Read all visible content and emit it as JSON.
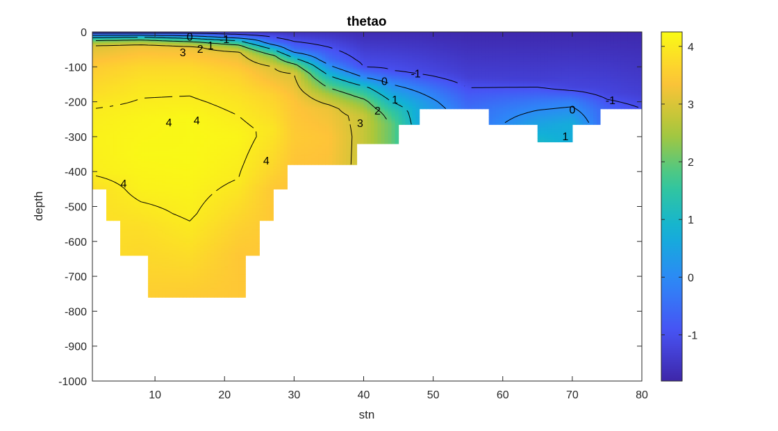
{
  "chart_data": {
    "type": "heatmap",
    "title": "thetao",
    "xlabel": "stn",
    "ylabel": "depth",
    "xlim": [
      1,
      80
    ],
    "ylim": [
      -1000,
      0
    ],
    "x_ticks": [
      10,
      20,
      30,
      40,
      50,
      60,
      70,
      80
    ],
    "y_ticks": [
      0,
      -100,
      -200,
      -300,
      -400,
      -500,
      -600,
      -700,
      -800,
      -900,
      -1000
    ],
    "colorbar": {
      "range": [
        -1.8,
        4.25
      ],
      "ticks": [
        4,
        3,
        2,
        1,
        0,
        -1
      ],
      "colormap": "parula"
    },
    "bottom_depth_steps": [
      [
        1,
        -450
      ],
      [
        3,
        -540
      ],
      [
        5,
        -640
      ],
      [
        9,
        -760
      ],
      [
        23,
        -640
      ],
      [
        25,
        -540
      ],
      [
        27,
        -450
      ],
      [
        29,
        -380
      ],
      [
        39,
        -320
      ],
      [
        45,
        -265
      ],
      [
        48,
        -220
      ],
      [
        58,
        -265
      ],
      [
        65,
        -315
      ],
      [
        70,
        -265
      ],
      [
        74,
        -220
      ],
      [
        80,
        -220
      ]
    ],
    "value_profiles": [
      {
        "x": 1,
        "t": [
          [
            0,
            -1.5
          ],
          [
            -8,
            -0.3
          ],
          [
            -15,
            0.8
          ],
          [
            -25,
            2.0
          ],
          [
            -40,
            3.0
          ],
          [
            -100,
            3.5
          ],
          [
            -180,
            3.8
          ],
          [
            -220,
            4.0
          ],
          [
            -300,
            4.1
          ],
          [
            -400,
            4.05
          ],
          [
            -450,
            3.8
          ]
        ]
      },
      {
        "x": 8,
        "t": [
          [
            0,
            -1.5
          ],
          [
            -8,
            -0.3
          ],
          [
            -15,
            1.0
          ],
          [
            -25,
            2.2
          ],
          [
            -40,
            3.2
          ],
          [
            -100,
            3.7
          ],
          [
            -150,
            3.9
          ],
          [
            -250,
            4.15
          ],
          [
            -350,
            4.2
          ],
          [
            -450,
            4.1
          ],
          [
            -560,
            3.8
          ],
          [
            -760,
            3.55
          ]
        ]
      },
      {
        "x": 15,
        "t": [
          [
            0,
            -1.5
          ],
          [
            -10,
            -0.2
          ],
          [
            -18,
            1.0
          ],
          [
            -30,
            2.2
          ],
          [
            -45,
            3.2
          ],
          [
            -100,
            3.7
          ],
          [
            -150,
            3.9
          ],
          [
            -250,
            4.2
          ],
          [
            -380,
            4.2
          ],
          [
            -520,
            4.05
          ],
          [
            -760,
            3.5
          ]
        ]
      },
      {
        "x": 22,
        "t": [
          [
            0,
            -1.5
          ],
          [
            -14,
            -0.5
          ],
          [
            -25,
            1.0
          ],
          [
            -40,
            2.2
          ],
          [
            -60,
            3.1
          ],
          [
            -120,
            3.6
          ],
          [
            -200,
            3.9
          ],
          [
            -300,
            4.15
          ],
          [
            -420,
            4.0
          ],
          [
            -560,
            3.6
          ],
          [
            -640,
            3.45
          ]
        ]
      },
      {
        "x": 27,
        "t": [
          [
            0,
            -1.5
          ],
          [
            -30,
            -0.5
          ],
          [
            -50,
            1.0
          ],
          [
            -70,
            2.2
          ],
          [
            -100,
            3.0
          ],
          [
            -180,
            3.6
          ],
          [
            -280,
            3.9
          ],
          [
            -380,
            3.7
          ],
          [
            -450,
            3.45
          ]
        ]
      },
      {
        "x": 30,
        "t": [
          [
            0,
            -1.6
          ],
          [
            -50,
            -0.5
          ],
          [
            -75,
            1.0
          ],
          [
            -95,
            2.2
          ],
          [
            -120,
            3.0
          ],
          [
            -200,
            3.4
          ],
          [
            -300,
            3.5
          ],
          [
            -380,
            3.4
          ]
        ]
      },
      {
        "x": 35,
        "t": [
          [
            0,
            -1.6
          ],
          [
            -80,
            -0.5
          ],
          [
            -110,
            0.5
          ],
          [
            -140,
            1.5
          ],
          [
            -180,
            2.5
          ],
          [
            -220,
            3.2
          ],
          [
            -300,
            3.4
          ],
          [
            -380,
            3.35
          ]
        ]
      },
      {
        "x": 40,
        "t": [
          [
            0,
            -1.7
          ],
          [
            -100,
            -1.0
          ],
          [
            -130,
            0.0
          ],
          [
            -160,
            1.2
          ],
          [
            -200,
            2.2
          ],
          [
            -240,
            2.8
          ],
          [
            -320,
            2.8
          ]
        ]
      },
      {
        "x": 44,
        "t": [
          [
            0,
            -1.7
          ],
          [
            -110,
            -1.0
          ],
          [
            -150,
            0.0
          ],
          [
            -200,
            1.0
          ],
          [
            -230,
            1.6
          ],
          [
            -265,
            2.0
          ]
        ]
      },
      {
        "x": 48,
        "t": [
          [
            0,
            -1.7
          ],
          [
            -115,
            -1.1
          ],
          [
            -160,
            -0.2
          ],
          [
            -200,
            0.4
          ],
          [
            -220,
            0.6
          ]
        ]
      },
      {
        "x": 55,
        "t": [
          [
            0,
            -1.75
          ],
          [
            -130,
            -1.3
          ],
          [
            -180,
            -0.8
          ],
          [
            -220,
            -0.5
          ]
        ]
      },
      {
        "x": 65,
        "t": [
          [
            0,
            -1.75
          ],
          [
            -140,
            -1.3
          ],
          [
            -200,
            -0.3
          ],
          [
            -265,
            0.5
          ],
          [
            -315,
            1.0
          ]
        ]
      },
      {
        "x": 70,
        "t": [
          [
            0,
            -1.75
          ],
          [
            -160,
            -1.2
          ],
          [
            -200,
            -0.2
          ],
          [
            -265,
            0.7
          ]
        ]
      },
      {
        "x": 75,
        "t": [
          [
            0,
            -1.75
          ],
          [
            -175,
            -1.2
          ],
          [
            -220,
            -0.7
          ]
        ]
      },
      {
        "x": 80,
        "t": [
          [
            0,
            -1.75
          ],
          [
            -180,
            -1.3
          ],
          [
            -220,
            -1.0
          ]
        ]
      }
    ],
    "contour_labels": [
      {
        "text": "0",
        "x": 15.0,
        "y": -13
      },
      {
        "text": "-1",
        "x": 20.0,
        "y": -20
      },
      {
        "text": "2",
        "x": 16.5,
        "y": -48
      },
      {
        "text": "1",
        "x": 18.0,
        "y": -38
      },
      {
        "text": "3",
        "x": 14.0,
        "y": -58
      },
      {
        "text": "-1",
        "x": 47.5,
        "y": -118
      },
      {
        "text": "0",
        "x": 43.0,
        "y": -140
      },
      {
        "text": "1",
        "x": 44.5,
        "y": -193
      },
      {
        "text": "2",
        "x": 42.0,
        "y": -225
      },
      {
        "text": "3",
        "x": 39.5,
        "y": -260
      },
      {
        "text": "4",
        "x": 12.0,
        "y": -258
      },
      {
        "text": "4",
        "x": 16.0,
        "y": -252
      },
      {
        "text": "4",
        "x": 26.0,
        "y": -368
      },
      {
        "text": "4",
        "x": 5.5,
        "y": -433
      },
      {
        "text": "-1",
        "x": 75.5,
        "y": -195
      },
      {
        "text": "0",
        "x": 70.0,
        "y": -222
      },
      {
        "text": "1",
        "x": 69.0,
        "y": -298
      }
    ]
  }
}
